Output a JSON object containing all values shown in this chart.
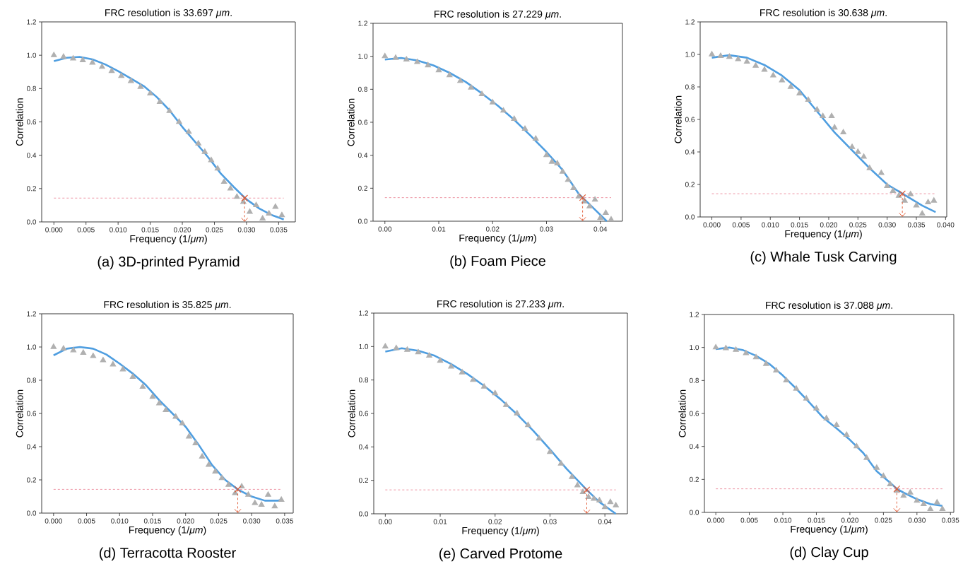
{
  "chart_data": [
    {
      "type": "line",
      "title": "FRC resolution is 33.697 *μm*.",
      "xlabel": "Frequency (1/*μm*)",
      "ylabel": "Correlation",
      "annotations": [
        "(a) 3D-printed Pyramid"
      ],
      "xlim": [
        -0.0019,
        0.0376
      ],
      "ylim": [
        0,
        1.2
      ],
      "xticks": [
        {
          "value": 0,
          "label": "0.000"
        },
        {
          "value": 0.005,
          "label": "0.005"
        },
        {
          "value": 0.01,
          "label": "0.010"
        },
        {
          "value": 0.015,
          "label": "0.015"
        },
        {
          "value": 0.02,
          "label": "0.020"
        },
        {
          "value": 0.025,
          "label": "0.025"
        },
        {
          "value": 0.03,
          "label": "0.030"
        },
        {
          "value": 0.035,
          "label": "0.035"
        }
      ],
      "yticks": [
        {
          "value": 0,
          "label": "0.0"
        },
        {
          "value": 0.2,
          "label": "0.2"
        },
        {
          "value": 0.4,
          "label": "0.4"
        },
        {
          "value": 0.6,
          "label": "0.6"
        },
        {
          "value": 0.8,
          "label": "0.8"
        },
        {
          "value": 1.0,
          "label": "1.0"
        },
        {
          "value": 1.2,
          "label": "1.2"
        }
      ],
      "ref_lines": [
        {
          "axis": "y",
          "value": 0.143,
          "color": "#e8788c",
          "line_style": "dashed"
        }
      ],
      "series": [
        {
          "type": "scatter",
          "marker": "triangle",
          "color": "#b0b0b0",
          "x": [
            0,
            0.0015,
            0.003,
            0.0045,
            0.006,
            0.0075,
            0.009,
            0.0105,
            0.012,
            0.0135,
            0.015,
            0.0165,
            0.018,
            0.0195,
            0.021,
            0.0225,
            0.0235,
            0.0245,
            0.0255,
            0.0265,
            0.0275,
            0.0285,
            0.0295,
            0.0305,
            0.0315,
            0.0325,
            0.0335,
            0.0345,
            0.0355
          ],
          "values": [
            1.0,
            0.99,
            0.98,
            0.97,
            0.955,
            0.93,
            0.905,
            0.875,
            0.845,
            0.81,
            0.77,
            0.72,
            0.665,
            0.6,
            0.54,
            0.47,
            0.42,
            0.37,
            0.32,
            0.24,
            0.2,
            0.15,
            0.12,
            0.06,
            0.1,
            0.02,
            0.05,
            0.09,
            0.04
          ]
        },
        {
          "type": "line",
          "marker": "none",
          "line_style": "solid",
          "color": "#4f9ee0",
          "x": [
            0,
            0.002,
            0.004,
            0.006,
            0.008,
            0.01,
            0.012,
            0.014,
            0.016,
            0.018,
            0.02,
            0.022,
            0.024,
            0.026,
            0.028,
            0.03,
            0.032,
            0.034,
            0.0358
          ],
          "values": [
            0.965,
            0.985,
            0.99,
            0.975,
            0.945,
            0.905,
            0.86,
            0.815,
            0.75,
            0.67,
            0.57,
            0.48,
            0.39,
            0.29,
            0.21,
            0.135,
            0.08,
            0.04,
            0.015
          ]
        },
        {
          "type": "scatter",
          "marker": "cross",
          "color": "#e0542c",
          "x": [
            0.0297
          ],
          "values": [
            0.143
          ]
        },
        {
          "type": "line",
          "marker": "none",
          "line_style": "dashed",
          "color": "#e0542c",
          "x": [
            0.0297,
            0.0297
          ],
          "values": [
            0.143,
            0
          ]
        }
      ]
    },
    {
      "type": "line",
      "title": "FRC resolution is 27.229 *μm*.",
      "xlabel": "Frequency (1/*μm*)",
      "ylabel": "Correlation",
      "annotations": [
        "(b) Foam Piece"
      ],
      "xlim": [
        -0.0022,
        0.0441
      ],
      "ylim": [
        0,
        1.2
      ],
      "xticks": [
        {
          "value": 0,
          "label": "0.00"
        },
        {
          "value": 0.01,
          "label": "0.01"
        },
        {
          "value": 0.02,
          "label": "0.02"
        },
        {
          "value": 0.03,
          "label": "0.03"
        },
        {
          "value": 0.04,
          "label": "0.04"
        }
      ],
      "yticks": [
        {
          "value": 0,
          "label": "0.0"
        },
        {
          "value": 0.2,
          "label": "0.2"
        },
        {
          "value": 0.4,
          "label": "0.4"
        },
        {
          "value": 0.6,
          "label": "0.6"
        },
        {
          "value": 0.8,
          "label": "0.8"
        },
        {
          "value": 1.0,
          "label": "1.0"
        },
        {
          "value": 1.2,
          "label": "1.2"
        }
      ],
      "ref_lines": [
        {
          "axis": "y",
          "value": 0.143,
          "color": "#e8788c",
          "line_style": "dashed"
        }
      ],
      "series": [
        {
          "type": "scatter",
          "marker": "triangle",
          "color": "#b0b0b0",
          "x": [
            0,
            0.002,
            0.004,
            0.006,
            0.008,
            0.01,
            0.012,
            0.014,
            0.016,
            0.018,
            0.02,
            0.022,
            0.024,
            0.026,
            0.028,
            0.03,
            0.031,
            0.032,
            0.033,
            0.034,
            0.035,
            0.036,
            0.037,
            0.038,
            0.039,
            0.04,
            0.041,
            0.042
          ],
          "values": [
            1.0,
            0.99,
            0.98,
            0.965,
            0.945,
            0.915,
            0.885,
            0.85,
            0.81,
            0.77,
            0.72,
            0.67,
            0.62,
            0.56,
            0.5,
            0.4,
            0.36,
            0.35,
            0.3,
            0.25,
            0.2,
            0.15,
            0.12,
            0.09,
            0.13,
            0.02,
            0.05,
            0.01
          ]
        },
        {
          "type": "line",
          "marker": "none",
          "line_style": "solid",
          "color": "#4f9ee0",
          "x": [
            0,
            0.003,
            0.006,
            0.009,
            0.012,
            0.015,
            0.018,
            0.021,
            0.024,
            0.027,
            0.03,
            0.033,
            0.036,
            0.039,
            0.0412
          ],
          "values": [
            0.98,
            0.99,
            0.975,
            0.945,
            0.9,
            0.845,
            0.775,
            0.7,
            0.615,
            0.52,
            0.42,
            0.31,
            0.165,
            0.07,
            0.0
          ]
        },
        {
          "type": "scatter",
          "marker": "cross",
          "color": "#e0542c",
          "x": [
            0.0367
          ],
          "values": [
            0.143
          ]
        },
        {
          "type": "line",
          "marker": "none",
          "line_style": "dashed",
          "color": "#e0542c",
          "x": [
            0.0367,
            0.0367
          ],
          "values": [
            0.143,
            0
          ]
        }
      ]
    },
    {
      "type": "line",
      "title": "FRC resolution is 30.638 *μm*.",
      "xlabel": "Frequency (1/*μm*)",
      "ylabel": "Correlation",
      "annotations": [
        "(c) Whale Tusk Carving"
      ],
      "xlim": [
        -0.002,
        0.0402
      ],
      "ylim": [
        0,
        1.2
      ],
      "xticks": [
        {
          "value": 0,
          "label": "0.000"
        },
        {
          "value": 0.005,
          "label": "0.005"
        },
        {
          "value": 0.01,
          "label": "0.010"
        },
        {
          "value": 0.015,
          "label": "0.015"
        },
        {
          "value": 0.02,
          "label": "0.020"
        },
        {
          "value": 0.025,
          "label": "0.025"
        },
        {
          "value": 0.03,
          "label": "0.030"
        },
        {
          "value": 0.035,
          "label": "0.035"
        },
        {
          "value": 0.04,
          "label": "0.040"
        }
      ],
      "yticks": [
        {
          "value": 0,
          "label": "0.0"
        },
        {
          "value": 0.2,
          "label": "0.2"
        },
        {
          "value": 0.4,
          "label": "0.4"
        },
        {
          "value": 0.6,
          "label": "0.6"
        },
        {
          "value": 0.8,
          "label": "0.8"
        },
        {
          "value": 1.0,
          "label": "1.0"
        },
        {
          "value": 1.2,
          "label": "1.2"
        }
      ],
      "ref_lines": [
        {
          "axis": "y",
          "value": 0.143,
          "color": "#e8788c",
          "line_style": "dashed"
        }
      ],
      "series": [
        {
          "type": "scatter",
          "marker": "triangle",
          "color": "#b0b0b0",
          "x": [
            0,
            0.0015,
            0.003,
            0.0045,
            0.006,
            0.0075,
            0.009,
            0.0105,
            0.012,
            0.0135,
            0.015,
            0.0165,
            0.018,
            0.019,
            0.0205,
            0.021,
            0.0225,
            0.024,
            0.025,
            0.026,
            0.027,
            0.029,
            0.03,
            0.031,
            0.032,
            0.033,
            0.034,
            0.035,
            0.036,
            0.037,
            0.038
          ],
          "values": [
            1.0,
            0.99,
            0.985,
            0.97,
            0.955,
            0.93,
            0.905,
            0.87,
            0.84,
            0.8,
            0.76,
            0.72,
            0.66,
            0.62,
            0.62,
            0.55,
            0.52,
            0.43,
            0.4,
            0.37,
            0.3,
            0.27,
            0.19,
            0.16,
            0.13,
            0.1,
            0.14,
            0.07,
            0.02,
            0.09,
            0.1
          ]
        },
        {
          "type": "line",
          "marker": "none",
          "line_style": "solid",
          "color": "#4f9ee0",
          "x": [
            0,
            0.003,
            0.006,
            0.009,
            0.012,
            0.015,
            0.018,
            0.021,
            0.024,
            0.027,
            0.03,
            0.033,
            0.036,
            0.0383
          ],
          "values": [
            0.98,
            0.995,
            0.98,
            0.935,
            0.87,
            0.78,
            0.65,
            0.52,
            0.41,
            0.3,
            0.2,
            0.135,
            0.07,
            0.03
          ]
        },
        {
          "type": "scatter",
          "marker": "cross",
          "color": "#e0542c",
          "x": [
            0.0326
          ],
          "values": [
            0.143
          ]
        },
        {
          "type": "line",
          "marker": "none",
          "line_style": "dashed",
          "color": "#e0542c",
          "x": [
            0.0326,
            0.0326
          ],
          "values": [
            0.143,
            0
          ]
        }
      ]
    },
    {
      "type": "line",
      "title": "FRC resolution is 35.825 *μm*.",
      "xlabel": "Frequency (1/*μm*)",
      "ylabel": "Correlation",
      "annotations": [
        "(d) Terracotta Rooster"
      ],
      "xlim": [
        -0.0018,
        0.0363
      ],
      "ylim": [
        0,
        1.2
      ],
      "xticks": [
        {
          "value": 0,
          "label": "0.000"
        },
        {
          "value": 0.005,
          "label": "0.005"
        },
        {
          "value": 0.01,
          "label": "0.010"
        },
        {
          "value": 0.015,
          "label": "0.015"
        },
        {
          "value": 0.02,
          "label": "0.020"
        },
        {
          "value": 0.025,
          "label": "0.025"
        },
        {
          "value": 0.03,
          "label": "0.030"
        },
        {
          "value": 0.035,
          "label": "0.035"
        }
      ],
      "yticks": [
        {
          "value": 0,
          "label": "0.0"
        },
        {
          "value": 0.2,
          "label": "0.2"
        },
        {
          "value": 0.4,
          "label": "0.4"
        },
        {
          "value": 0.6,
          "label": "0.6"
        },
        {
          "value": 0.8,
          "label": "0.8"
        },
        {
          "value": 1.0,
          "label": "1.0"
        },
        {
          "value": 1.2,
          "label": "1.2"
        }
      ],
      "ref_lines": [
        {
          "axis": "y",
          "value": 0.143,
          "color": "#e8788c",
          "line_style": "dashed"
        }
      ],
      "series": [
        {
          "type": "scatter",
          "marker": "triangle",
          "color": "#b0b0b0",
          "x": [
            0,
            0.0015,
            0.003,
            0.0045,
            0.006,
            0.0075,
            0.009,
            0.0105,
            0.012,
            0.0135,
            0.015,
            0.016,
            0.017,
            0.0185,
            0.0195,
            0.0205,
            0.0215,
            0.0225,
            0.0235,
            0.0245,
            0.0255,
            0.0265,
            0.0275,
            0.0285,
            0.0295,
            0.0305,
            0.0315,
            0.0325,
            0.0335,
            0.0345
          ],
          "values": [
            1.0,
            0.99,
            0.98,
            0.965,
            0.945,
            0.92,
            0.895,
            0.865,
            0.82,
            0.76,
            0.7,
            0.66,
            0.62,
            0.58,
            0.54,
            0.46,
            0.42,
            0.34,
            0.29,
            0.25,
            0.21,
            0.17,
            0.12,
            0.16,
            0.11,
            0.06,
            0.05,
            0.11,
            0.04,
            0.08
          ]
        },
        {
          "type": "line",
          "marker": "none",
          "line_style": "solid",
          "color": "#4f9ee0",
          "x": [
            0,
            0.002,
            0.004,
            0.006,
            0.008,
            0.01,
            0.012,
            0.014,
            0.016,
            0.018,
            0.02,
            0.022,
            0.024,
            0.026,
            0.028,
            0.03,
            0.032,
            0.034,
            0.0345
          ],
          "values": [
            0.95,
            0.99,
            1.0,
            0.99,
            0.955,
            0.9,
            0.84,
            0.77,
            0.68,
            0.6,
            0.52,
            0.41,
            0.29,
            0.2,
            0.14,
            0.1,
            0.075,
            0.075,
            0.08
          ]
        },
        {
          "type": "scatter",
          "marker": "cross",
          "color": "#e0542c",
          "x": [
            0.0279
          ],
          "values": [
            0.143
          ]
        },
        {
          "type": "line",
          "marker": "none",
          "line_style": "dashed",
          "color": "#e0542c",
          "x": [
            0.0279,
            0.0279
          ],
          "values": [
            0.143,
            0
          ]
        }
      ]
    },
    {
      "type": "line",
      "title": "FRC resolution is 27.233 *μm*.",
      "xlabel": "Frequency (1/*μm*)",
      "ylabel": "Correlation",
      "annotations": [
        "(e) Carved Protome"
      ],
      "xlim": [
        -0.0021,
        0.0441
      ],
      "ylim": [
        0,
        1.2
      ],
      "xticks": [
        {
          "value": 0,
          "label": "0.00"
        },
        {
          "value": 0.01,
          "label": "0.01"
        },
        {
          "value": 0.02,
          "label": "0.02"
        },
        {
          "value": 0.03,
          "label": "0.03"
        },
        {
          "value": 0.04,
          "label": "0.04"
        }
      ],
      "yticks": [
        {
          "value": 0,
          "label": "0.0"
        },
        {
          "value": 0.2,
          "label": "0.2"
        },
        {
          "value": 0.4,
          "label": "0.4"
        },
        {
          "value": 0.6,
          "label": "0.6"
        },
        {
          "value": 0.8,
          "label": "0.8"
        },
        {
          "value": 1.0,
          "label": "1.0"
        },
        {
          "value": 1.2,
          "label": "1.2"
        }
      ],
      "ref_lines": [
        {
          "axis": "y",
          "value": 0.143,
          "color": "#e8788c",
          "line_style": "dashed"
        }
      ],
      "series": [
        {
          "type": "scatter",
          "marker": "triangle",
          "color": "#b0b0b0",
          "x": [
            0,
            0.002,
            0.004,
            0.006,
            0.008,
            0.01,
            0.012,
            0.014,
            0.016,
            0.018,
            0.02,
            0.022,
            0.024,
            0.026,
            0.028,
            0.03,
            0.032,
            0.034,
            0.035,
            0.036,
            0.037,
            0.038,
            0.039,
            0.04,
            0.041,
            0.042
          ],
          "values": [
            1.0,
            0.99,
            0.98,
            0.965,
            0.945,
            0.915,
            0.88,
            0.845,
            0.8,
            0.76,
            0.72,
            0.65,
            0.6,
            0.53,
            0.45,
            0.37,
            0.3,
            0.22,
            0.17,
            0.13,
            0.1,
            0.09,
            0.08,
            0.04,
            0.07,
            0.05
          ]
        },
        {
          "type": "line",
          "marker": "none",
          "line_style": "solid",
          "color": "#4f9ee0",
          "x": [
            0,
            0.003,
            0.006,
            0.009,
            0.012,
            0.015,
            0.018,
            0.021,
            0.024,
            0.027,
            0.03,
            0.033,
            0.0367,
            0.039,
            0.042
          ],
          "values": [
            0.97,
            0.99,
            0.975,
            0.945,
            0.895,
            0.835,
            0.765,
            0.685,
            0.595,
            0.495,
            0.385,
            0.27,
            0.143,
            0.07,
            0.0
          ]
        },
        {
          "type": "scatter",
          "marker": "cross",
          "color": "#e0542c",
          "x": [
            0.0367
          ],
          "values": [
            0.143
          ]
        },
        {
          "type": "line",
          "marker": "none",
          "line_style": "dashed",
          "color": "#e0542c",
          "x": [
            0.0367,
            0.0367
          ],
          "values": [
            0.143,
            0
          ]
        }
      ]
    },
    {
      "type": "line",
      "title": "FRC resolution is 37.088 *μm*.",
      "xlabel": "Frequency (1/*μm*)",
      "ylabel": "Correlation",
      "annotations": [
        "(d) Clay Cup"
      ],
      "xlim": [
        -0.0017,
        0.0355
      ],
      "ylim": [
        0,
        1.2
      ],
      "xticks": [
        {
          "value": 0,
          "label": "0.000"
        },
        {
          "value": 0.005,
          "label": "0.005"
        },
        {
          "value": 0.01,
          "label": "0.010"
        },
        {
          "value": 0.015,
          "label": "0.015"
        },
        {
          "value": 0.02,
          "label": "0.020"
        },
        {
          "value": 0.025,
          "label": "0.025"
        },
        {
          "value": 0.03,
          "label": "0.030"
        },
        {
          "value": 0.035,
          "label": "0.035"
        }
      ],
      "yticks": [
        {
          "value": 0,
          "label": "0.0"
        },
        {
          "value": 0.2,
          "label": "0.2"
        },
        {
          "value": 0.4,
          "label": "0.4"
        },
        {
          "value": 0.6,
          "label": "0.6"
        },
        {
          "value": 0.8,
          "label": "0.8"
        },
        {
          "value": 1.0,
          "label": "1.0"
        },
        {
          "value": 1.2,
          "label": "1.2"
        }
      ],
      "ref_lines": [
        {
          "axis": "y",
          "value": 0.143,
          "color": "#e8788c",
          "line_style": "dashed"
        }
      ],
      "series": [
        {
          "type": "scatter",
          "marker": "triangle",
          "color": "#b0b0b0",
          "x": [
            0,
            0.0015,
            0.003,
            0.0045,
            0.006,
            0.0075,
            0.009,
            0.0105,
            0.012,
            0.0135,
            0.015,
            0.0165,
            0.018,
            0.0195,
            0.021,
            0.0225,
            0.024,
            0.025,
            0.026,
            0.027,
            0.028,
            0.029,
            0.03,
            0.031,
            0.032,
            0.033,
            0.0338
          ],
          "values": [
            1.0,
            0.995,
            0.985,
            0.965,
            0.94,
            0.9,
            0.86,
            0.8,
            0.75,
            0.69,
            0.63,
            0.57,
            0.53,
            0.47,
            0.4,
            0.33,
            0.27,
            0.22,
            0.17,
            0.13,
            0.1,
            0.12,
            0.07,
            0.05,
            0.02,
            0.06,
            0.02
          ]
        },
        {
          "type": "line",
          "marker": "none",
          "line_style": "solid",
          "color": "#4f9ee0",
          "x": [
            0,
            0.002,
            0.004,
            0.006,
            0.008,
            0.01,
            0.012,
            0.014,
            0.016,
            0.018,
            0.02,
            0.022,
            0.024,
            0.026,
            0.027,
            0.028,
            0.03,
            0.032,
            0.0338
          ],
          "values": [
            0.99,
            1.0,
            0.985,
            0.95,
            0.9,
            0.83,
            0.75,
            0.665,
            0.575,
            0.51,
            0.44,
            0.36,
            0.25,
            0.18,
            0.143,
            0.12,
            0.08,
            0.05,
            0.04
          ]
        },
        {
          "type": "scatter",
          "marker": "cross",
          "color": "#e0542c",
          "x": [
            0.027
          ],
          "values": [
            0.143
          ]
        },
        {
          "type": "line",
          "marker": "none",
          "line_style": "dashed",
          "color": "#e0542c",
          "x": [
            0.027,
            0.027
          ],
          "values": [
            0.143,
            0
          ]
        }
      ]
    }
  ]
}
